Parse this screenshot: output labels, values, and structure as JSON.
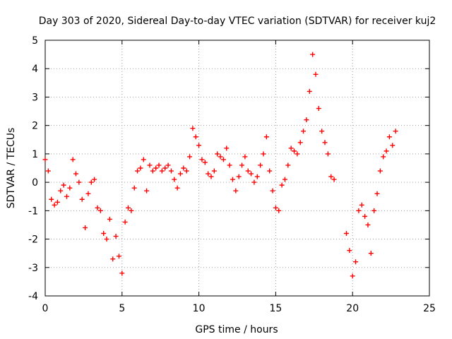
{
  "chart_data": {
    "type": "scatter",
    "title": "Day 303 of 2020, Sidereal Day-to-day VTEC variation (SDTVAR) for receiver kuj2",
    "xlabel": "GPS time / hours",
    "ylabel": "SDTVAR / TECUs",
    "xlim": [
      0,
      25
    ],
    "ylim": [
      -4,
      5
    ],
    "xticks": [
      0,
      5,
      10,
      15,
      20,
      25
    ],
    "yticks": [
      -4,
      -3,
      -2,
      -1,
      0,
      1,
      2,
      3,
      4,
      5
    ],
    "grid": true,
    "marker": "+",
    "color": "#ff0000",
    "series": [
      {
        "name": "SDTVAR",
        "x": [
          0.0,
          0.2,
          0.4,
          0.6,
          0.8,
          1.0,
          1.2,
          1.4,
          1.6,
          1.8,
          2.0,
          2.2,
          2.4,
          2.6,
          2.8,
          3.0,
          3.2,
          3.4,
          3.6,
          3.8,
          4.0,
          4.2,
          4.4,
          4.6,
          4.8,
          5.0,
          5.2,
          5.4,
          5.6,
          5.8,
          6.0,
          6.2,
          6.4,
          6.6,
          6.8,
          7.0,
          7.2,
          7.4,
          7.6,
          7.8,
          8.0,
          8.2,
          8.4,
          8.6,
          8.8,
          9.0,
          9.2,
          9.4,
          9.6,
          9.8,
          10.0,
          10.2,
          10.4,
          10.6,
          10.8,
          11.0,
          11.2,
          11.4,
          11.6,
          11.8,
          12.0,
          12.2,
          12.4,
          12.6,
          12.8,
          13.0,
          13.2,
          13.4,
          13.6,
          13.8,
          14.0,
          14.2,
          14.4,
          14.6,
          14.8,
          15.0,
          15.2,
          15.4,
          15.6,
          15.8,
          16.0,
          16.2,
          16.4,
          16.6,
          16.8,
          17.0,
          17.2,
          17.4,
          17.6,
          17.8,
          18.0,
          18.2,
          18.4,
          18.6,
          18.8,
          19.6,
          19.8,
          20.0,
          20.2,
          20.4,
          20.6,
          20.8,
          21.0,
          21.2,
          21.4,
          21.6,
          21.8,
          22.0,
          22.2,
          22.4,
          22.6,
          22.8
        ],
        "y": [
          0.8,
          0.4,
          -0.6,
          -0.8,
          -0.7,
          -0.3,
          -0.1,
          -0.5,
          -0.2,
          0.8,
          0.3,
          0.0,
          -0.6,
          -1.6,
          -0.4,
          0.0,
          0.1,
          -0.9,
          -1.0,
          -1.8,
          -2.0,
          -1.3,
          -2.7,
          -1.9,
          -2.6,
          -3.2,
          -1.4,
          -0.9,
          -1.0,
          -0.2,
          0.4,
          0.5,
          0.8,
          -0.3,
          0.6,
          0.4,
          0.5,
          0.6,
          0.4,
          0.5,
          0.6,
          0.4,
          0.1,
          -0.2,
          0.3,
          0.5,
          0.4,
          0.9,
          1.9,
          1.6,
          1.3,
          0.8,
          0.7,
          0.3,
          0.2,
          0.4,
          1.0,
          0.9,
          0.8,
          1.2,
          0.6,
          0.1,
          -0.3,
          0.2,
          0.6,
          0.9,
          0.4,
          0.3,
          0.0,
          0.2,
          0.6,
          1.0,
          1.6,
          0.4,
          -0.3,
          -0.9,
          -1.0,
          -0.1,
          0.1,
          0.6,
          1.2,
          1.1,
          1.0,
          1.4,
          1.8,
          2.2,
          3.2,
          4.5,
          3.8,
          2.6,
          1.8,
          1.4,
          1.0,
          0.2,
          0.1,
          -1.8,
          -2.4,
          -3.3,
          -2.8,
          -1.0,
          -0.8,
          -1.2,
          -1.5,
          -2.5,
          -1.0,
          -0.4,
          0.4,
          0.9,
          1.1,
          1.6,
          1.3,
          1.8
        ]
      }
    ]
  }
}
